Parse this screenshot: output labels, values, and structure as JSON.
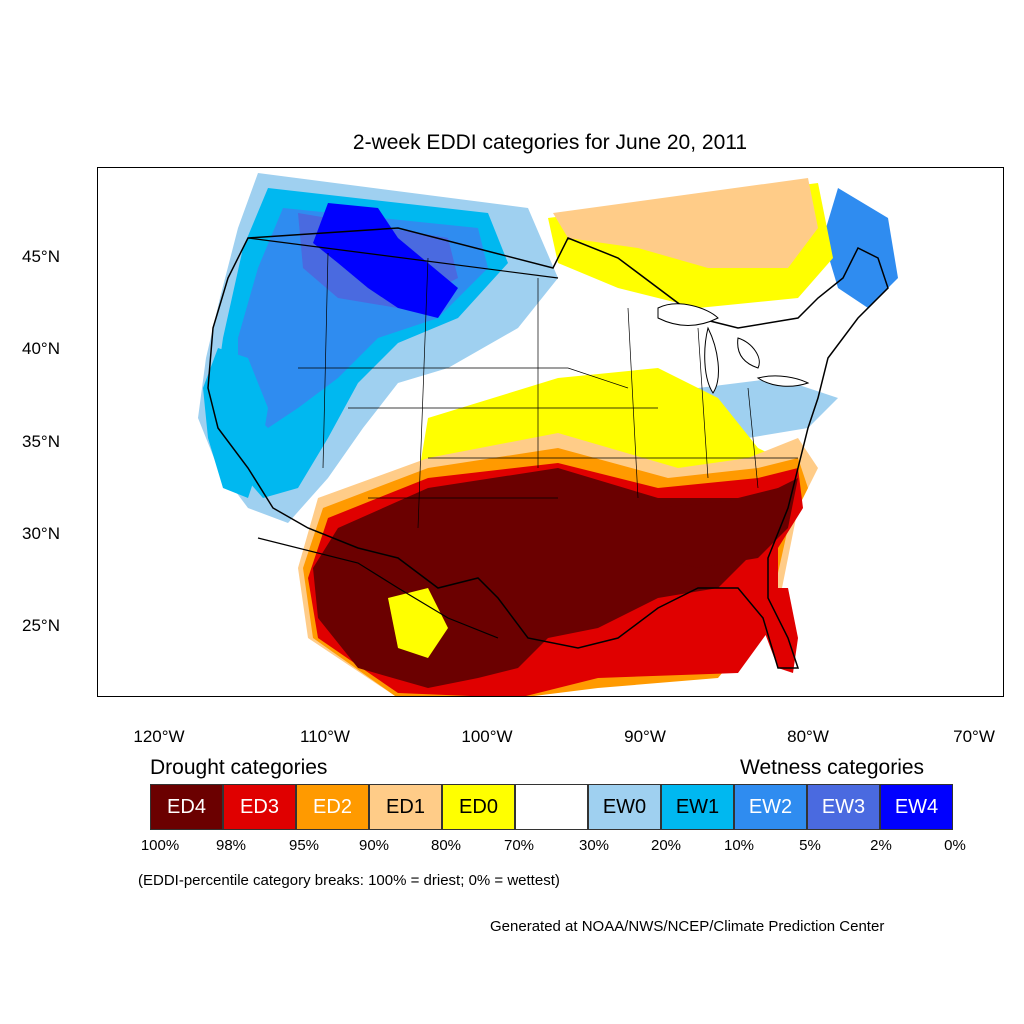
{
  "title": "2-week EDDI categories for June 20, 2011",
  "latitude_labels": [
    "45°N",
    "40°N",
    "35°N",
    "30°N",
    "25°N"
  ],
  "longitude_labels": [
    "120°W",
    "110°W",
    "100°W",
    "90°W",
    "80°W",
    "70°W"
  ],
  "legend": {
    "drought_title": "Drought categories",
    "wetness_title": "Wetness categories",
    "categories": [
      {
        "label": "ED4",
        "color": "#6b0000",
        "text_color": "#ffffff"
      },
      {
        "label": "ED3",
        "color": "#e00000",
        "text_color": "#ffffff"
      },
      {
        "label": "ED2",
        "color": "#ff9a00",
        "text_color": "#ffffff"
      },
      {
        "label": "ED1",
        "color": "#ffcc88",
        "text_color": "#000000"
      },
      {
        "label": "ED0",
        "color": "#ffff00",
        "text_color": "#000000"
      },
      {
        "label": "",
        "color": "#ffffff",
        "text_color": "#000000"
      },
      {
        "label": "EW0",
        "color": "#9fd0f0",
        "text_color": "#000000"
      },
      {
        "label": "EW1",
        "color": "#00b8f0",
        "text_color": "#000000"
      },
      {
        "label": "EW2",
        "color": "#2f8cf0",
        "text_color": "#ffffff"
      },
      {
        "label": "EW3",
        "color": "#4a6ae0",
        "text_color": "#ffffff"
      },
      {
        "label": "EW4",
        "color": "#0000ff",
        "text_color": "#ffffff"
      }
    ],
    "percent_breaks": [
      "100%",
      "98%",
      "95%",
      "90%",
      "80%",
      "70%",
      "30%",
      "20%",
      "10%",
      "5%",
      "2%",
      "0%"
    ]
  },
  "note": "(EDDI-percentile category breaks: 100% = driest; 0% = wettest)",
  "credit": "Generated at NOAA/NWS/NCEP/Climate Prediction Center"
}
